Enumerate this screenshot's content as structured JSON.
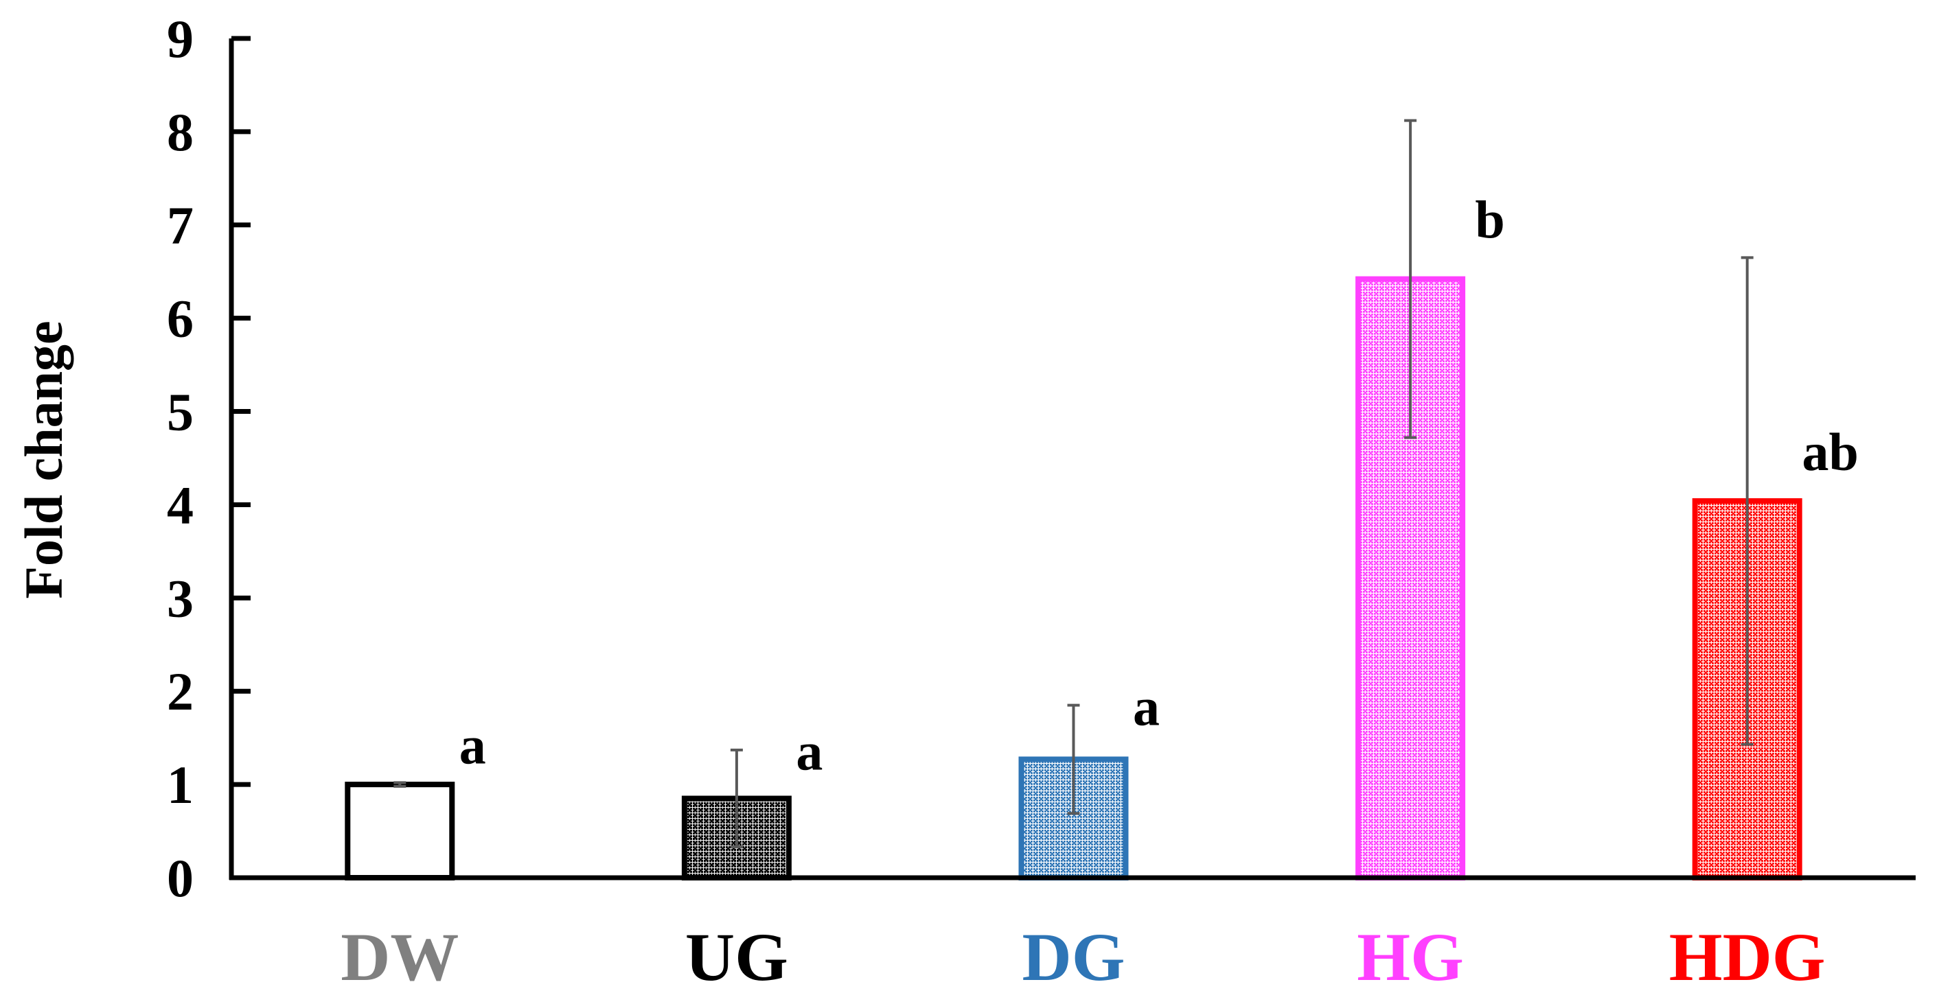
{
  "chart_data": {
    "type": "bar",
    "title": "",
    "xlabel": "",
    "ylabel": "Fold change",
    "ylim": [
      0,
      9
    ],
    "yticks": [
      0,
      1,
      2,
      3,
      4,
      5,
      6,
      7,
      8,
      9
    ],
    "grid": false,
    "categories": [
      "DW",
      "UG",
      "DG",
      "HG",
      "HDG"
    ],
    "values": [
      1.0,
      0.85,
      1.27,
      6.42,
      4.04
    ],
    "errors_upper": [
      1.02,
      1.37,
      1.85,
      8.12,
      6.65
    ],
    "errors_lower": [
      0.98,
      0.33,
      0.69,
      4.72,
      1.43
    ],
    "significance_labels": [
      "a",
      "a",
      "a",
      "b",
      "ab"
    ],
    "category_colors": [
      "#808080",
      "#000000",
      "#2E75B6",
      "#FF40FF",
      "#FF0000"
    ],
    "bar_edge_colors": [
      "#000000",
      "#000000",
      "#2E75B6",
      "#FF40FF",
      "#FF0000"
    ],
    "bar_fill_patterns": [
      "none",
      "dense-dots",
      "dots",
      "dots",
      "dots"
    ],
    "error_bar_color": "#595959",
    "axis_color": "#000000"
  }
}
